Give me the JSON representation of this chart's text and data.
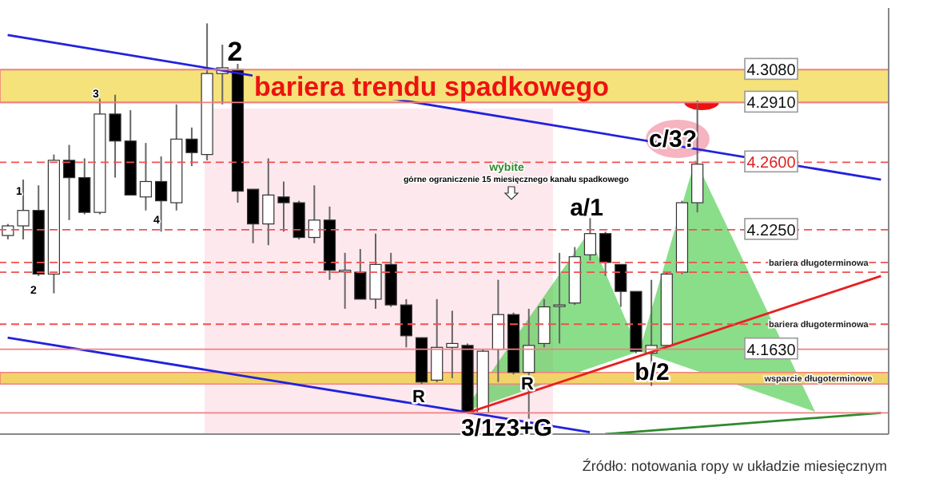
{
  "chart_data": {
    "type": "candlestick",
    "categories": [
      null,
      null,
      null,
      null,
      null,
      null,
      null,
      null,
      null,
      null,
      null,
      null,
      null,
      null,
      null,
      null,
      null,
      null,
      null,
      null,
      null,
      null,
      null,
      null,
      null,
      null,
      null,
      null,
      null,
      null,
      null,
      null,
      null,
      null,
      null,
      null,
      null,
      null,
      null,
      null,
      null,
      null,
      null,
      null,
      null,
      null,
      null,
      null,
      null,
      null,
      null,
      null,
      null,
      null,
      null,
      null,
      null,
      null
    ],
    "ohlc": [
      [
        4.222,
        4.228,
        4.22,
        4.227
      ],
      [
        4.227,
        4.251,
        4.22,
        4.235
      ],
      [
        4.235,
        4.248,
        4.201,
        4.202
      ],
      [
        4.202,
        4.264,
        4.192,
        4.261
      ],
      [
        4.261,
        4.269,
        4.23,
        4.252
      ],
      [
        4.252,
        4.262,
        4.233,
        4.234
      ],
      [
        4.234,
        4.293,
        4.233,
        4.285
      ],
      [
        4.285,
        4.295,
        4.252,
        4.271
      ],
      [
        4.271,
        4.287,
        4.243,
        4.243
      ],
      [
        4.242,
        4.27,
        4.235,
        4.25
      ],
      [
        4.25,
        4.263,
        4.224,
        4.24
      ],
      [
        4.239,
        4.29,
        4.235,
        4.272
      ],
      [
        4.272,
        4.278,
        4.258,
        4.265
      ],
      [
        4.264,
        4.332,
        4.261,
        4.306
      ],
      [
        4.306,
        4.321,
        4.29,
        4.309
      ],
      [
        4.308,
        4.311,
        4.239,
        4.245
      ],
      [
        4.246,
        4.246,
        4.218,
        4.228
      ],
      [
        4.228,
        4.262,
        4.217,
        4.243
      ],
      [
        4.242,
        4.25,
        4.224,
        4.239
      ],
      [
        4.239,
        4.24,
        4.22,
        4.221
      ],
      [
        4.221,
        4.248,
        4.218,
        4.23
      ],
      [
        4.23,
        4.237,
        4.199,
        4.204
      ],
      [
        4.204,
        4.213,
        4.184,
        4.204
      ],
      [
        4.203,
        4.215,
        4.189,
        4.189
      ],
      [
        4.189,
        4.223,
        4.184,
        4.207
      ],
      [
        4.207,
        4.213,
        4.185,
        4.186
      ],
      [
        4.186,
        4.189,
        4.164,
        4.17
      ],
      [
        4.169,
        4.169,
        4.145,
        4.146
      ],
      [
        4.147,
        4.189,
        4.146,
        4.164
      ],
      [
        4.164,
        4.183,
        4.148,
        4.166
      ],
      [
        4.165,
        4.166,
        4.13,
        4.13
      ],
      [
        4.13,
        4.163,
        4.13,
        4.162
      ],
      [
        4.163,
        4.199,
        4.146,
        4.181
      ],
      [
        4.181,
        4.182,
        4.15,
        4.151
      ],
      [
        4.151,
        4.184,
        4.127,
        4.165
      ],
      [
        4.166,
        4.189,
        4.164,
        4.185
      ],
      [
        4.186,
        4.213,
        4.166,
        4.186
      ],
      [
        4.187,
        4.216,
        4.186,
        4.211
      ],
      [
        4.212,
        4.231,
        4.209,
        4.223
      ],
      [
        4.223,
        4.224,
        4.201,
        4.208
      ],
      [
        4.207,
        4.207,
        4.185,
        4.193
      ],
      [
        4.193,
        4.193,
        4.161,
        4.162
      ],
      [
        4.161,
        4.199,
        4.144,
        4.165
      ],
      [
        4.165,
        4.203,
        4.164,
        4.202
      ],
      [
        4.203,
        4.24,
        4.202,
        4.239
      ],
      [
        4.239,
        4.292,
        4.234,
        4.259
      ],
      null,
      null,
      null,
      null,
      null,
      null,
      null,
      null,
      null,
      null,
      null,
      null
    ],
    "series": [
      {
        "type": "line",
        "color": "#2222dd",
        "values": [
          4.326,
          null,
          null,
          null,
          null,
          null,
          null,
          null,
          null,
          null,
          null,
          null,
          null,
          null,
          null,
          null,
          null,
          null,
          null,
          null,
          null,
          null,
          null,
          null,
          null,
          null,
          null,
          null,
          null,
          null,
          null,
          null,
          null,
          null,
          null,
          null,
          null,
          null,
          null,
          null,
          null,
          null,
          null,
          null,
          null,
          null,
          null,
          null,
          null,
          null,
          null,
          null,
          null,
          null,
          null,
          null,
          null,
          4.251
        ]
      },
      {
        "type": "line",
        "color": "#2222dd",
        "values": [
          4.169,
          null,
          null,
          null,
          null,
          null,
          null,
          null,
          null,
          null,
          null,
          null,
          null,
          null,
          null,
          null,
          null,
          null,
          null,
          null,
          null,
          null,
          null,
          null,
          null,
          null,
          null,
          null,
          null,
          null,
          null,
          null,
          null,
          null,
          null,
          null,
          null,
          null,
          4.12,
          null,
          null,
          null,
          null,
          null,
          null,
          null,
          null,
          null,
          null,
          null,
          null,
          null,
          null,
          null,
          null,
          null,
          null,
          null
        ]
      },
      {
        "type": "line",
        "color": "#e82020",
        "values": [
          null,
          null,
          null,
          null,
          null,
          null,
          null,
          null,
          null,
          null,
          null,
          null,
          null,
          null,
          null,
          null,
          null,
          null,
          null,
          null,
          null,
          null,
          null,
          null,
          null,
          null,
          null,
          null,
          null,
          null,
          4.13,
          null,
          null,
          null,
          null,
          null,
          null,
          null,
          null,
          null,
          null,
          null,
          null,
          null,
          null,
          null,
          null,
          null,
          null,
          null,
          null,
          null,
          null,
          null,
          null,
          null,
          null,
          4.201
        ]
      },
      {
        "type": "line",
        "color": "#2e8b2e",
        "values": [
          null,
          null,
          null,
          null,
          null,
          null,
          null,
          null,
          null,
          null,
          null,
          null,
          null,
          null,
          null,
          null,
          null,
          null,
          null,
          null,
          null,
          null,
          null,
          null,
          null,
          null,
          null,
          null,
          null,
          null,
          null,
          null,
          null,
          null,
          null,
          null,
          null,
          null,
          null,
          4.119,
          null,
          null,
          null,
          null,
          null,
          null,
          null,
          null,
          null,
          null,
          null,
          null,
          null,
          null,
          null,
          null,
          null,
          4.13
        ]
      }
    ],
    "ylim": [
      4.119,
      4.34
    ],
    "tick_labels": false,
    "ref_lines": [
      {
        "axis": "y",
        "value": 4.308,
        "label": "4.3080",
        "color": "#f08080",
        "line_style": "solid"
      },
      {
        "axis": "y",
        "value": 4.291,
        "label": "4.2910",
        "color": "#f08080",
        "line_style": "solid"
      },
      {
        "axis": "y",
        "value": 4.26,
        "label": "4.2600",
        "color": "#f05050",
        "line_style": "dashed"
      },
      {
        "axis": "y",
        "value": 4.225,
        "label": "4.2250",
        "color": "#f05050",
        "line_style": "dashed"
      },
      {
        "axis": "y",
        "value": 4.208,
        "label": "bariera długoterminowa",
        "color": "#f05050",
        "line_style": "dashed"
      },
      {
        "axis": "y",
        "value": 4.203,
        "color": "#f05050",
        "line_style": "dashed"
      },
      {
        "axis": "y",
        "value": 4.176,
        "label": "bariera długoterminowa",
        "color": "#f05050",
        "line_style": "dashed"
      },
      {
        "axis": "y",
        "value": 4.163,
        "label": "4.1630",
        "color": "#f08080",
        "line_style": "solid"
      },
      {
        "axis": "y",
        "value": 4.13,
        "color": "#f08080",
        "line_style": "solid"
      }
    ],
    "bands": [
      {
        "axis": "y",
        "from": 4.291,
        "to": 4.308,
        "label": "bariera trendu spadkowego",
        "color": "#f5e27a"
      },
      {
        "axis": "y",
        "from": 4.145,
        "to": 4.151,
        "label": "wsparcie długoterminowe",
        "color": "#f2d36a"
      }
    ],
    "annotations": [
      "2",
      "3",
      "1",
      "4",
      "2",
      "wybite",
      "górne ograniczenie 15 miesięcznego kanału spadkowego",
      "a/1",
      "c/3?",
      "b/2",
      "R",
      "R",
      "3/1z3+G",
      "Źródło: notowania ropy w układzie miesięcznym"
    ]
  }
}
